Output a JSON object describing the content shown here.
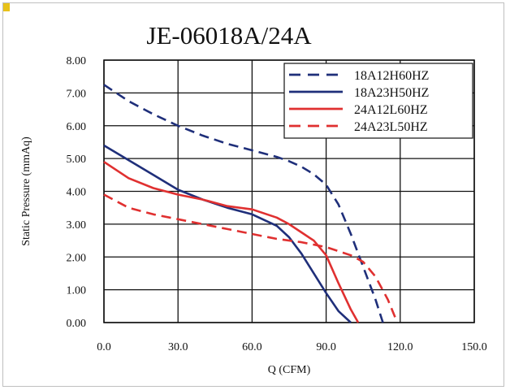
{
  "chart_data": {
    "type": "line",
    "title": "JE-06018A/24A",
    "xlabel": "Q (CFM)",
    "ylabel": "Static Pressure (mmAq)",
    "xlim": [
      0,
      150
    ],
    "ylim": [
      0,
      8
    ],
    "x_ticks": [
      "0.0",
      "30.0",
      "60.0",
      "90.0",
      "120.0",
      "150.0"
    ],
    "y_ticks": [
      "0.00",
      "1.00",
      "2.00",
      "3.00",
      "4.00",
      "5.00",
      "6.00",
      "7.00",
      "8.00"
    ],
    "grid": true,
    "legend_position": "top-right",
    "series": [
      {
        "name": "18A12H60HZ",
        "color": "#1f2f7a",
        "dash": true,
        "x": [
          0,
          10,
          20,
          30,
          40,
          50,
          60,
          70,
          75,
          80,
          85,
          90,
          95,
          100,
          105,
          110,
          113
        ],
        "y": [
          7.25,
          6.75,
          6.35,
          6.0,
          5.7,
          5.45,
          5.25,
          5.05,
          4.92,
          4.75,
          4.52,
          4.2,
          3.6,
          2.7,
          1.7,
          0.7,
          0.0
        ]
      },
      {
        "name": "18A23H50HZ",
        "color": "#1f2f7a",
        "dash": false,
        "x": [
          0,
          10,
          20,
          30,
          40,
          50,
          60,
          70,
          75,
          80,
          85,
          90,
          95,
          100
        ],
        "y": [
          5.4,
          4.95,
          4.5,
          4.05,
          3.75,
          3.5,
          3.3,
          2.95,
          2.6,
          2.1,
          1.5,
          0.9,
          0.35,
          0.0
        ]
      },
      {
        "name": "24A12L60HZ",
        "color": "#e03030",
        "dash": false,
        "x": [
          0,
          10,
          20,
          30,
          40,
          50,
          60,
          70,
          75,
          80,
          85,
          90,
          95,
          100,
          103
        ],
        "y": [
          4.9,
          4.4,
          4.1,
          3.9,
          3.75,
          3.55,
          3.45,
          3.2,
          3.0,
          2.75,
          2.5,
          2.05,
          1.2,
          0.4,
          0.0
        ]
      },
      {
        "name": "24A23L50HZ",
        "color": "#e03030",
        "dash": true,
        "x": [
          0,
          10,
          20,
          30,
          40,
          50,
          60,
          70,
          80,
          90,
          100,
          105,
          110,
          115,
          118
        ],
        "y": [
          3.9,
          3.5,
          3.3,
          3.15,
          3.0,
          2.85,
          2.7,
          2.55,
          2.45,
          2.3,
          2.05,
          1.85,
          1.4,
          0.7,
          0.15
        ]
      }
    ]
  }
}
